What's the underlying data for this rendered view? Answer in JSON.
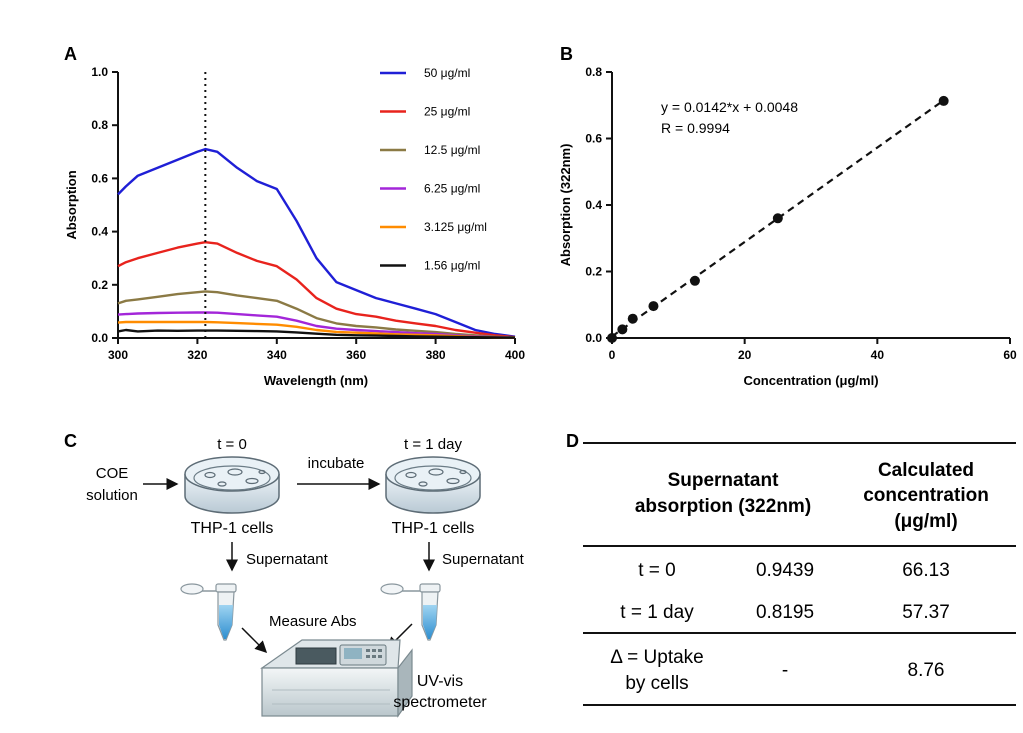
{
  "panels": {
    "a": "A",
    "b": "B",
    "c": "C",
    "d": "D"
  },
  "chart_data": [
    {
      "type": "line",
      "panel": "A",
      "xlabel": "Wavelength (nm)",
      "ylabel": "Absorption",
      "xlim": [
        300,
        400
      ],
      "ylim": [
        0,
        1.0
      ],
      "x_ticks": [
        "300",
        "320",
        "340",
        "360",
        "380",
        "400"
      ],
      "y_ticks": [
        "0.0",
        "0.2",
        "0.4",
        "0.6",
        "0.8",
        "1.0"
      ],
      "grid": false,
      "legend_position": "right",
      "reference_line_x": 322,
      "x": [
        300,
        302,
        305,
        310,
        315,
        320,
        322,
        325,
        330,
        335,
        340,
        345,
        350,
        355,
        360,
        365,
        370,
        375,
        380,
        385,
        390,
        395,
        400
      ],
      "series": [
        {
          "name": "50 μg/ml",
          "color": "#1f1fd6",
          "values": [
            0.54,
            0.57,
            0.61,
            0.64,
            0.67,
            0.7,
            0.71,
            0.7,
            0.64,
            0.59,
            0.56,
            0.44,
            0.3,
            0.21,
            0.18,
            0.15,
            0.13,
            0.11,
            0.09,
            0.06,
            0.03,
            0.015,
            0.005
          ]
        },
        {
          "name": "25 μg/ml",
          "color": "#e8231d",
          "values": [
            0.27,
            0.285,
            0.3,
            0.32,
            0.34,
            0.355,
            0.36,
            0.355,
            0.32,
            0.29,
            0.27,
            0.22,
            0.15,
            0.11,
            0.09,
            0.08,
            0.065,
            0.055,
            0.045,
            0.03,
            0.02,
            0.01,
            0.003
          ]
        },
        {
          "name": "12.5 μg/ml",
          "color": "#8b7a45",
          "values": [
            0.13,
            0.14,
            0.145,
            0.155,
            0.165,
            0.172,
            0.175,
            0.172,
            0.16,
            0.15,
            0.14,
            0.11,
            0.075,
            0.055,
            0.045,
            0.04,
            0.032,
            0.027,
            0.022,
            0.015,
            0.01,
            0.005,
            0.002
          ]
        },
        {
          "name": "6.25 μg/ml",
          "color": "#a326d9",
          "values": [
            0.088,
            0.09,
            0.092,
            0.094,
            0.095,
            0.096,
            0.096,
            0.095,
            0.09,
            0.085,
            0.08,
            0.065,
            0.045,
            0.035,
            0.03,
            0.026,
            0.022,
            0.018,
            0.015,
            0.01,
            0.006,
            0.003,
            0.001
          ]
        },
        {
          "name": "3.125 μg/ml",
          "color": "#ff8c00",
          "values": [
            0.058,
            0.06,
            0.06,
            0.06,
            0.06,
            0.06,
            0.06,
            0.059,
            0.056,
            0.053,
            0.05,
            0.042,
            0.03,
            0.023,
            0.02,
            0.017,
            0.014,
            0.012,
            0.01,
            0.007,
            0.004,
            0.002,
            0.001
          ]
        },
        {
          "name": "1.56 μg/ml",
          "color": "#111111",
          "values": [
            0.025,
            0.03,
            0.025,
            0.028,
            0.027,
            0.028,
            0.028,
            0.028,
            0.027,
            0.026,
            0.025,
            0.021,
            0.016,
            0.012,
            0.01,
            0.009,
            0.008,
            0.006,
            0.005,
            0.004,
            0.003,
            0.002,
            0.001
          ]
        }
      ]
    },
    {
      "type": "scatter",
      "panel": "B",
      "xlabel": "Concentration (μg/ml)",
      "ylabel": "Absorption (322nm)",
      "xlim": [
        0,
        60
      ],
      "ylim": [
        0,
        0.8
      ],
      "x_ticks": [
        "0",
        "20",
        "40",
        "60"
      ],
      "y_ticks": [
        "0.0",
        "0.2",
        "0.4",
        "0.6",
        "0.8"
      ],
      "grid": false,
      "points": [
        {
          "x": 0,
          "y": 0.0
        },
        {
          "x": 1.56,
          "y": 0.026
        },
        {
          "x": 3.125,
          "y": 0.058
        },
        {
          "x": 6.25,
          "y": 0.096
        },
        {
          "x": 12.5,
          "y": 0.172
        },
        {
          "x": 25,
          "y": 0.36
        },
        {
          "x": 50,
          "y": 0.713
        }
      ],
      "fit": {
        "slope": 0.0142,
        "intercept": 0.0048,
        "style": "dashed"
      },
      "annotations": [
        "y = 0.0142*x + 0.0048",
        "R = 0.9994"
      ]
    }
  ],
  "diagram": {
    "t0": "t = 0",
    "t1": "t = 1 day",
    "coe_line1": "COE",
    "coe_line2": "solution",
    "incubate": "incubate",
    "cells_left": "THP-1 cells",
    "cells_right": "THP-1 cells",
    "supernatant_left": "Supernatant",
    "supernatant_right": "Supernatant",
    "measure": "Measure Abs",
    "uv_line1": "UV-vis",
    "uv_line2": "spectrometer"
  },
  "table": {
    "header_col1_line1": "Supernatant",
    "header_col1_line2": "absorption (322nm)",
    "header_col2_line1": "Calculated",
    "header_col2_line2": "concentration",
    "header_col2_line3": "(μg/ml)",
    "rows": [
      {
        "label": "t = 0",
        "absorption": "0.9439",
        "concentration": "66.13"
      },
      {
        "label": "t = 1 day",
        "absorption": "0.8195",
        "concentration": "57.37"
      }
    ],
    "delta_line1": "Δ = Uptake",
    "delta_line2": "by cells",
    "delta_absorption": "-",
    "delta_concentration": "8.76"
  }
}
